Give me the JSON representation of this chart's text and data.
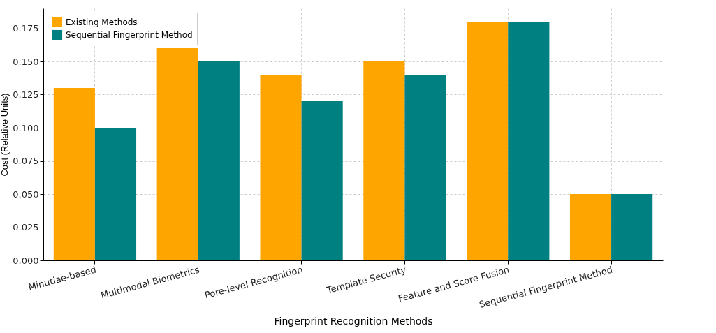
{
  "chart_data": {
    "type": "bar",
    "xlabel": "Fingerprint Recognition Methods",
    "ylabel": "Cost (Relative Units)",
    "categories": [
      "Minutiae-based",
      "Multimodal Biometrics",
      "Pore-level Recognition",
      "Template Security",
      "Feature and Score Fusion",
      "Sequential Fingerprint Method"
    ],
    "series": [
      {
        "name": "Existing Methods",
        "color": "#ffa500",
        "values": [
          0.13,
          0.16,
          0.14,
          0.15,
          0.18,
          0.05
        ]
      },
      {
        "name": "Sequential Fingerprint Method",
        "color": "#008080",
        "values": [
          0.1,
          0.15,
          0.12,
          0.14,
          0.18,
          0.05
        ]
      }
    ],
    "ylim": [
      0,
      0.19
    ],
    "yticks": [
      {
        "value": 0,
        "label": "0.000"
      },
      {
        "value": 0.025,
        "label": "0.025"
      },
      {
        "value": 0.05,
        "label": "0.050"
      },
      {
        "value": 0.075,
        "label": "0.075"
      },
      {
        "value": 0.1,
        "label": "0.100"
      },
      {
        "value": 0.125,
        "label": "0.125"
      },
      {
        "value": 0.15,
        "label": "0.150"
      },
      {
        "value": 0.175,
        "label": "0.175"
      }
    ],
    "grid": true,
    "legend": "top left"
  }
}
